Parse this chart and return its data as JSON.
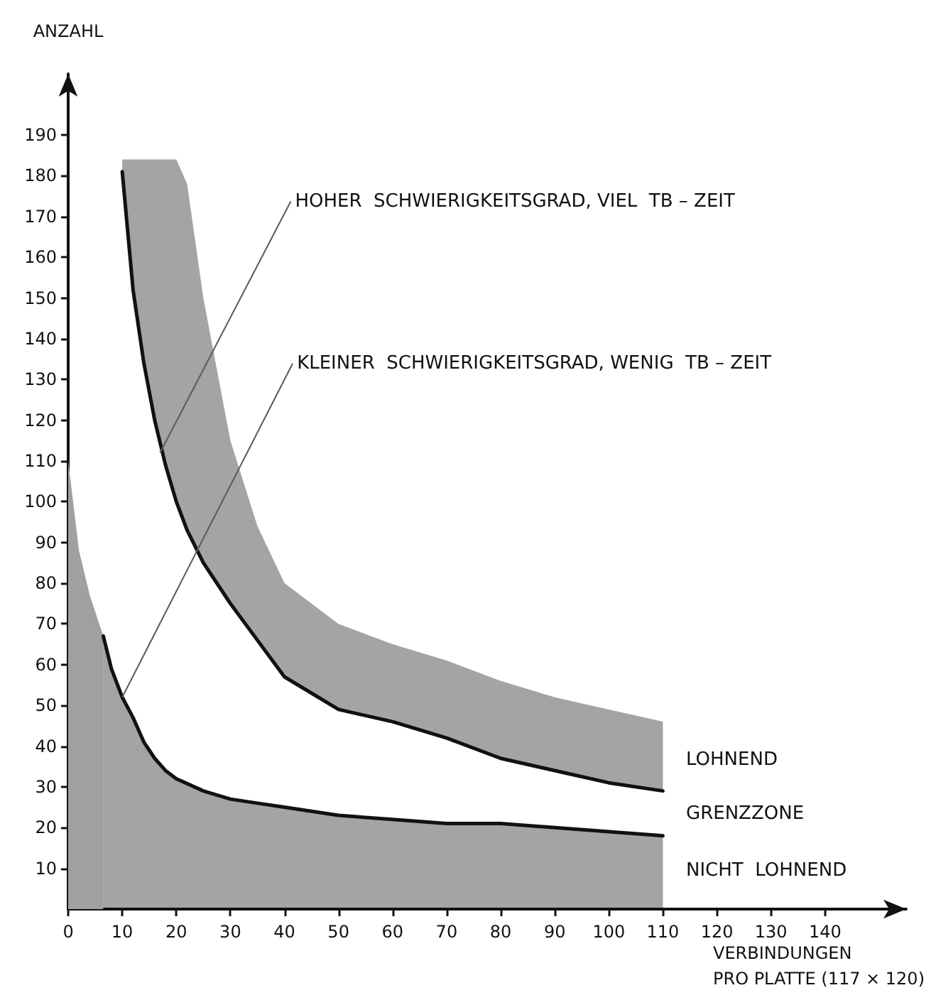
{
  "chart_data": {
    "type": "line",
    "ylabel": "ANZAHL",
    "xlabel": "VERBINDUNGEN\nPRO PLATTE (117 × 120)",
    "xlim": [
      0,
      155
    ],
    "ylim": [
      0,
      205
    ],
    "xticks": [
      0,
      10,
      20,
      30,
      40,
      50,
      60,
      70,
      80,
      90,
      100,
      110,
      120,
      130,
      140
    ],
    "yticks": [
      10,
      20,
      30,
      40,
      50,
      60,
      70,
      80,
      90,
      100,
      110,
      120,
      130,
      140,
      150,
      160,
      170,
      180,
      190
    ],
    "grid": false,
    "marker": "none",
    "line_style": "solid",
    "series": [
      {
        "type": "area",
        "color": "#a0a0a0",
        "x": [
          0,
          2,
          4,
          6.5
        ],
        "values": [
          110,
          88,
          77,
          67
        ]
      },
      {
        "type": "line",
        "color": "#111111",
        "x": [
          6.5,
          8,
          10,
          12,
          14,
          16,
          18,
          20,
          25,
          30,
          35,
          40,
          50,
          60,
          70,
          80,
          90,
          100,
          110
        ],
        "values": [
          67,
          59,
          52,
          47,
          41,
          37,
          34,
          32,
          29,
          27,
          26,
          25,
          23,
          22,
          21,
          21,
          20,
          19,
          18
        ],
        "lower": [
          0,
          0,
          0,
          0,
          0,
          0,
          0,
          0,
          0,
          0,
          0,
          0,
          0,
          0,
          0,
          0,
          0,
          0,
          0
        ],
        "upper": [
          67,
          59,
          52,
          47,
          41,
          37,
          34,
          32,
          29,
          27,
          26,
          25,
          23,
          22,
          21,
          21,
          20,
          19,
          18
        ]
      },
      {
        "type": "line",
        "color": "#111111",
        "x": [
          10,
          12,
          14,
          16,
          18,
          20,
          22,
          25,
          30,
          35,
          40,
          50,
          60,
          70,
          80,
          90,
          100,
          110
        ],
        "values": [
          181,
          152,
          134,
          120,
          109,
          100,
          93,
          85,
          75,
          66,
          57,
          49,
          46,
          42,
          37,
          34,
          31,
          29
        ],
        "lower": [
          181,
          152,
          134,
          120,
          109,
          100,
          93,
          85,
          75,
          66,
          57,
          49,
          46,
          42,
          37,
          34,
          31,
          29
        ],
        "upper": [
          184,
          184,
          184,
          184,
          184,
          184,
          178,
          150,
          115,
          94,
          80,
          70,
          65,
          61,
          56,
          52,
          49,
          46
        ]
      }
    ],
    "annotations": [
      {
        "text": "HOHER  SCHWIERIGKEITSGRAD, VIEL  TB – ZEIT",
        "x": 17,
        "y": 112
      },
      {
        "text": "KLEINER  SCHWIERIGKEITSGRAD, WENIG  TB – ZEIT",
        "x": 10,
        "y": 52
      },
      "LOHNEND",
      "GRENZZONE",
      "NICHT  LOHNEND"
    ]
  }
}
